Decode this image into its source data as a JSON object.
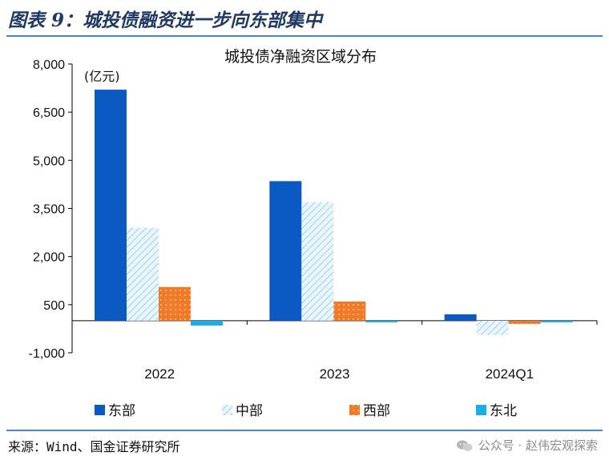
{
  "figure_title": "图表 9：城投债融资进一步向东部集中",
  "source": "来源：Wind、国金证券研究所",
  "watermark": "公众号 · 赵伟宏观探索",
  "watermark_icon": "wechat-icon",
  "chart_data": {
    "type": "bar",
    "title": "城投债净融资区域分布",
    "unit": "(亿元)",
    "categories": [
      "2022",
      "2023",
      "2024Q1"
    ],
    "series": [
      {
        "name": "东部",
        "values": [
          7200,
          4350,
          200
        ],
        "color": "#0b5ac4",
        "pattern": "solid"
      },
      {
        "name": "中部",
        "values": [
          2900,
          3700,
          -450
        ],
        "color": "#bfe0f5",
        "pattern": "hatch"
      },
      {
        "name": "西部",
        "values": [
          1050,
          600,
          -100
        ],
        "color": "#f07a27",
        "pattern": "dots"
      },
      {
        "name": "东北",
        "values": [
          -150,
          -50,
          -50
        ],
        "color": "#1aaee6",
        "pattern": "solid"
      }
    ],
    "y_ticks": [
      8000,
      6500,
      5000,
      3500,
      2000,
      500,
      -1000
    ],
    "y_tick_labels": [
      "8,000",
      "6,500",
      "5,000",
      "3,500",
      "2,000",
      "500",
      "-1,000"
    ],
    "ylim": [
      -1000,
      8000
    ],
    "grid": false,
    "legend_position": "bottom"
  }
}
